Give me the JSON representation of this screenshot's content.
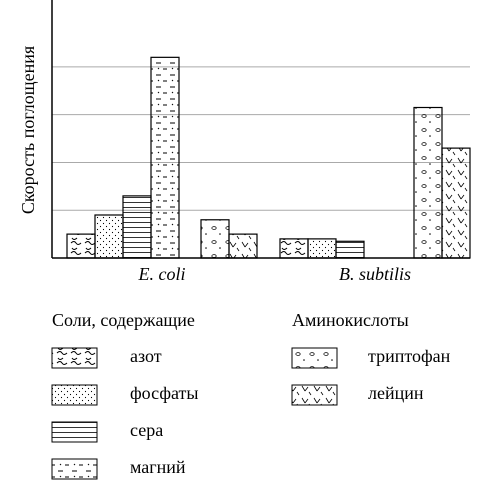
{
  "chart_data": {
    "type": "bar",
    "y_label": "Скорость поглощения",
    "categories": [
      "E. coli",
      "B. subtilis"
    ],
    "legend_groups": [
      "Соли, содержащие",
      "Аминокислоты"
    ],
    "series": [
      {
        "name": "азот",
        "group": 0,
        "color": "#000000",
        "values": [
          0.5,
          0.4
        ]
      },
      {
        "name": "фосфаты",
        "group": 0,
        "color": "#000000",
        "values": [
          0.9,
          0.4
        ]
      },
      {
        "name": "сера",
        "group": 0,
        "color": "#000000",
        "values": [
          1.3,
          0.35
        ]
      },
      {
        "name": "магний",
        "group": 0,
        "color": "#000000",
        "values": [
          4.2,
          null
        ]
      },
      {
        "name": "триптофан",
        "group": 1,
        "color": "#000000",
        "values": [
          0.8,
          3.15
        ]
      },
      {
        "name": "лейцин",
        "group": 1,
        "color": "#000000",
        "values": [
          0.5,
          2.3
        ]
      }
    ],
    "ylim": [
      0,
      5.4
    ],
    "yticks": [
      1,
      2,
      3,
      4
    ],
    "grid": true
  }
}
